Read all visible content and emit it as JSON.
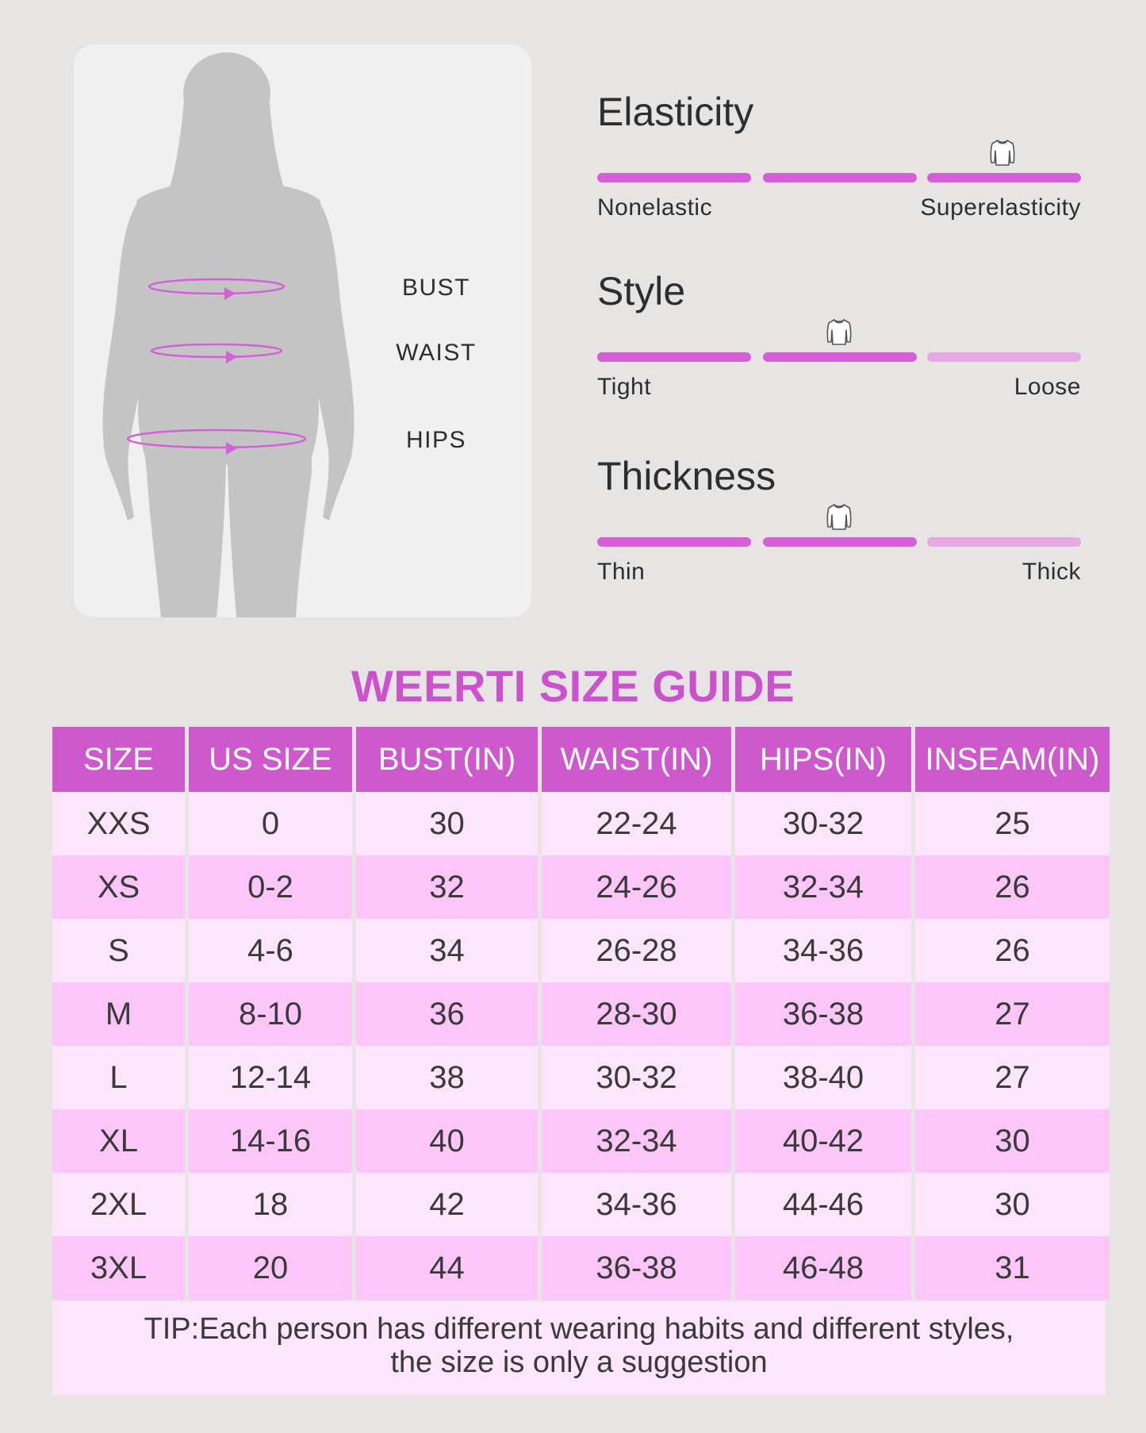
{
  "figure": {
    "labels": {
      "bust": "BUST",
      "waist": "WAIST",
      "hips": "HIPS"
    },
    "accent_color": "#d45fd6",
    "silhouette_color": "#c2c2c2"
  },
  "attributes": [
    {
      "title": "Elasticity",
      "low_label": "Nonelastic",
      "high_label": "Superelasticity",
      "level": 3,
      "of": 3
    },
    {
      "title": "Style",
      "low_label": "Tight",
      "high_label": "Loose",
      "level": 2,
      "of": 3
    },
    {
      "title": "Thickness",
      "low_label": "Thin",
      "high_label": "Thick",
      "level": 2,
      "of": 3
    }
  ],
  "marker_icon": "shirt-icon",
  "guide": {
    "title": "WEERTI SIZE GUIDE",
    "headers": [
      "SIZE",
      "US SIZE",
      "BUST(IN)",
      "WAIST(IN)",
      "HIPS(IN)",
      "INSEAM(IN)"
    ],
    "rows": [
      [
        "XXS",
        "0",
        "30",
        "22-24",
        "30-32",
        "25"
      ],
      [
        "XS",
        "0-2",
        "32",
        "24-26",
        "32-34",
        "26"
      ],
      [
        "S",
        "4-6",
        "34",
        "26-28",
        "34-36",
        "26"
      ],
      [
        "M",
        "8-10",
        "36",
        "28-30",
        "36-38",
        "27"
      ],
      [
        "L",
        "12-14",
        "38",
        "30-32",
        "38-40",
        "27"
      ],
      [
        "XL",
        "14-16",
        "40",
        "32-34",
        "40-42",
        "30"
      ],
      [
        "2XL",
        "18",
        "42",
        "34-36",
        "44-46",
        "30"
      ],
      [
        "3XL",
        "20",
        "44",
        "36-38",
        "46-48",
        "31"
      ]
    ],
    "tip_line1": "TIP:Each person has different wearing habits and different styles,",
    "tip_line2": "the size is only a suggestion"
  },
  "colors": {
    "header_bg": "#cd59cd",
    "row_light": "#fde6fb",
    "row_dark": "#fcc6f9",
    "bar_on": "#d75ed9",
    "bar_off": "#e6a9e3",
    "title": "#cc52cd"
  }
}
